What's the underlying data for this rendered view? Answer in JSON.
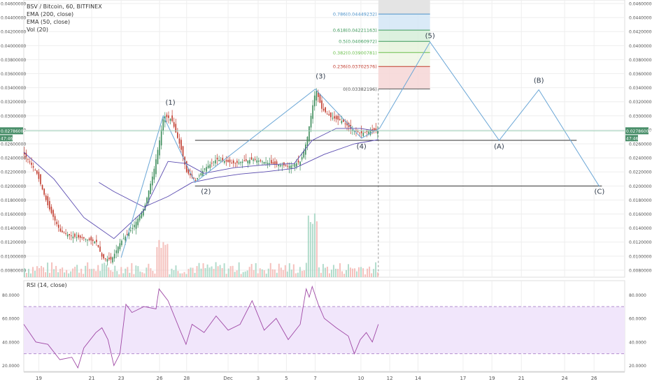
{
  "legend": {
    "symbol": "BSV / Bitcoin, 60, BITFINEX",
    "ema200": "EMA (200, close)",
    "ema50": "EMA (50, close)",
    "vol": "Vol (20)"
  },
  "rsi_legend": "RSI (14, close)",
  "current_price": "0.02786000",
  "countdown": "47:46",
  "colors": {
    "grid": "#eeeeee",
    "axis_text": "#555555",
    "wave_line": "#6aa6d6",
    "ema": "#5a4bb0",
    "rsi_line": "#a04aa6",
    "rsi_band": "#f1e6fb",
    "current_price_bg": "#4a8f6a",
    "candle_up": "#3c8c5a",
    "candle_down": "#c0392b"
  },
  "chart_data": {
    "type": "candlestick",
    "title": "BSV / Bitcoin, 60, BITFINEX",
    "ylim": [
      0.007,
      0.0465
    ],
    "y_ticks": [
      "0.04600000",
      "0.04400000",
      "0.04200000",
      "0.04000000",
      "0.03800000",
      "0.03600000",
      "0.03400000",
      "0.03200000",
      "0.03000000",
      "0.02800000",
      "0.02600000",
      "0.02400000",
      "0.02200000",
      "0.02000000",
      "0.01800000",
      "0.01600000",
      "0.01400000",
      "0.01200000",
      "0.01000000",
      "0.00800000"
    ],
    "x_ticks": [
      {
        "label": "19",
        "pos": 0.025
      },
      {
        "label": "21",
        "pos": 0.113
      },
      {
        "label": "23",
        "pos": 0.162
      },
      {
        "label": "26",
        "pos": 0.226
      },
      {
        "label": "28",
        "pos": 0.271
      },
      {
        "label": "Dec",
        "pos": 0.34
      },
      {
        "label": "3",
        "pos": 0.39
      },
      {
        "label": "5",
        "pos": 0.437
      },
      {
        "label": "7",
        "pos": 0.485
      },
      {
        "label": "10",
        "pos": 0.561
      },
      {
        "label": "12",
        "pos": 0.609
      },
      {
        "label": "14",
        "pos": 0.656
      },
      {
        "label": "17",
        "pos": 0.731
      },
      {
        "label": "19",
        "pos": 0.779
      },
      {
        "label": "21",
        "pos": 0.828
      },
      {
        "label": "24",
        "pos": 0.9
      },
      {
        "label": "26",
        "pos": 0.949
      }
    ],
    "price_path": [
      [
        0.0,
        0.0245
      ],
      [
        0.02,
        0.022
      ],
      [
        0.04,
        0.017
      ],
      [
        0.06,
        0.0135
      ],
      [
        0.08,
        0.0128
      ],
      [
        0.1,
        0.0125
      ],
      [
        0.12,
        0.012
      ],
      [
        0.13,
        0.0097
      ],
      [
        0.145,
        0.0095
      ],
      [
        0.16,
        0.012
      ],
      [
        0.18,
        0.014
      ],
      [
        0.2,
        0.017
      ],
      [
        0.215,
        0.022
      ],
      [
        0.225,
        0.0265
      ],
      [
        0.232,
        0.03
      ],
      [
        0.245,
        0.0295
      ],
      [
        0.26,
        0.0255
      ],
      [
        0.27,
        0.022
      ],
      [
        0.285,
        0.0208
      ],
      [
        0.3,
        0.0225
      ],
      [
        0.32,
        0.0238
      ],
      [
        0.35,
        0.0232
      ],
      [
        0.38,
        0.0238
      ],
      [
        0.41,
        0.0232
      ],
      [
        0.44,
        0.0228
      ],
      [
        0.46,
        0.0235
      ],
      [
        0.47,
        0.0265
      ],
      [
        0.48,
        0.0315
      ],
      [
        0.485,
        0.0338
      ],
      [
        0.495,
        0.031
      ],
      [
        0.51,
        0.0298
      ],
      [
        0.53,
        0.0292
      ],
      [
        0.545,
        0.028
      ],
      [
        0.56,
        0.0275
      ],
      [
        0.575,
        0.0278
      ],
      [
        0.59,
        0.0279
      ]
    ],
    "ema50_path": [
      [
        0.0,
        0.0248
      ],
      [
        0.05,
        0.021
      ],
      [
        0.1,
        0.0155
      ],
      [
        0.15,
        0.0125
      ],
      [
        0.2,
        0.0165
      ],
      [
        0.24,
        0.0235
      ],
      [
        0.27,
        0.0232
      ],
      [
        0.3,
        0.0218
      ],
      [
        0.35,
        0.0226
      ],
      [
        0.4,
        0.023
      ],
      [
        0.45,
        0.0232
      ],
      [
        0.48,
        0.0265
      ],
      [
        0.52,
        0.0282
      ],
      [
        0.56,
        0.0282
      ],
      [
        0.59,
        0.0278
      ]
    ],
    "ema200_path": [
      [
        0.125,
        0.0205
      ],
      [
        0.15,
        0.0192
      ],
      [
        0.2,
        0.017
      ],
      [
        0.24,
        0.0185
      ],
      [
        0.28,
        0.0205
      ],
      [
        0.32,
        0.0212
      ],
      [
        0.36,
        0.0217
      ],
      [
        0.4,
        0.022
      ],
      [
        0.45,
        0.0225
      ],
      [
        0.5,
        0.0245
      ],
      [
        0.55,
        0.026
      ],
      [
        0.59,
        0.0266
      ]
    ],
    "elliott_labels": [
      {
        "label": "(1)",
        "x": 0.244,
        "y": 0.0316
      },
      {
        "label": "(2)",
        "x": 0.303,
        "y": 0.0189
      },
      {
        "label": "(3)",
        "x": 0.494,
        "y": 0.0353
      },
      {
        "label": "(4)",
        "x": 0.562,
        "y": 0.0253
      },
      {
        "label": "(5)",
        "x": 0.676,
        "y": 0.0411
      },
      {
        "label": "(A)",
        "x": 0.791,
        "y": 0.0253
      },
      {
        "label": "(B)",
        "x": 0.857,
        "y": 0.0347
      },
      {
        "label": "(C)",
        "x": 0.958,
        "y": 0.0189
      }
    ],
    "wave_path": [
      [
        0.162,
        0.0098
      ],
      [
        0.232,
        0.03
      ],
      [
        0.285,
        0.0205
      ],
      [
        0.485,
        0.0338
      ],
      [
        0.562,
        0.0268
      ],
      [
        0.592,
        0.0282
      ],
      [
        0.676,
        0.0405
      ],
      [
        0.791,
        0.0265
      ],
      [
        0.857,
        0.0337
      ],
      [
        0.958,
        0.0199
      ]
    ],
    "horizontal_levels": [
      {
        "y": 0.0265,
        "x1": 0.285,
        "x2": 0.92
      },
      {
        "y": 0.02,
        "x1": 0.285,
        "x2": 0.962
      }
    ],
    "fib_levels": [
      {
        "label": "0.786(0.04449232)",
        "value": 0.04449232,
        "color": "#4a90c8"
      },
      {
        "label": "0.618(0.04221163)",
        "value": 0.04221163,
        "color": "#3c9a5a"
      },
      {
        "label": "0.5(0.04060972)",
        "value": 0.04060972,
        "color": "#3c9a5a"
      },
      {
        "label": "0.382(0.03900781)",
        "value": 0.03900781,
        "color": "#6abf4b"
      },
      {
        "label": "0.236(0.03702576)",
        "value": 0.03702576,
        "color": "#c0392b"
      },
      {
        "label": "0(0.03382196)",
        "value": 0.03382196,
        "color": "#555555"
      }
    ],
    "rsi": {
      "label": "RSI (14, close)",
      "ylim": [
        15,
        92
      ],
      "y_ticks": [
        "80.0000",
        "60.0000",
        "40.0000",
        "20.0000"
      ],
      "band": [
        30,
        70
      ],
      "path": [
        [
          0.0,
          55
        ],
        [
          0.02,
          40
        ],
        [
          0.04,
          38
        ],
        [
          0.06,
          25
        ],
        [
          0.08,
          27
        ],
        [
          0.09,
          18
        ],
        [
          0.1,
          35
        ],
        [
          0.12,
          48
        ],
        [
          0.13,
          52
        ],
        [
          0.14,
          42
        ],
        [
          0.15,
          20
        ],
        [
          0.16,
          30
        ],
        [
          0.17,
          72
        ],
        [
          0.18,
          65
        ],
        [
          0.2,
          70
        ],
        [
          0.22,
          68
        ],
        [
          0.225,
          85
        ],
        [
          0.24,
          75
        ],
        [
          0.26,
          50
        ],
        [
          0.27,
          38
        ],
        [
          0.28,
          55
        ],
        [
          0.3,
          48
        ],
        [
          0.32,
          62
        ],
        [
          0.34,
          50
        ],
        [
          0.36,
          55
        ],
        [
          0.38,
          75
        ],
        [
          0.4,
          50
        ],
        [
          0.42,
          60
        ],
        [
          0.44,
          42
        ],
        [
          0.46,
          55
        ],
        [
          0.47,
          85
        ],
        [
          0.475,
          78
        ],
        [
          0.48,
          87
        ],
        [
          0.49,
          72
        ],
        [
          0.5,
          60
        ],
        [
          0.52,
          52
        ],
        [
          0.54,
          45
        ],
        [
          0.55,
          30
        ],
        [
          0.56,
          42
        ],
        [
          0.57,
          48
        ],
        [
          0.58,
          40
        ],
        [
          0.59,
          55
        ]
      ]
    }
  }
}
